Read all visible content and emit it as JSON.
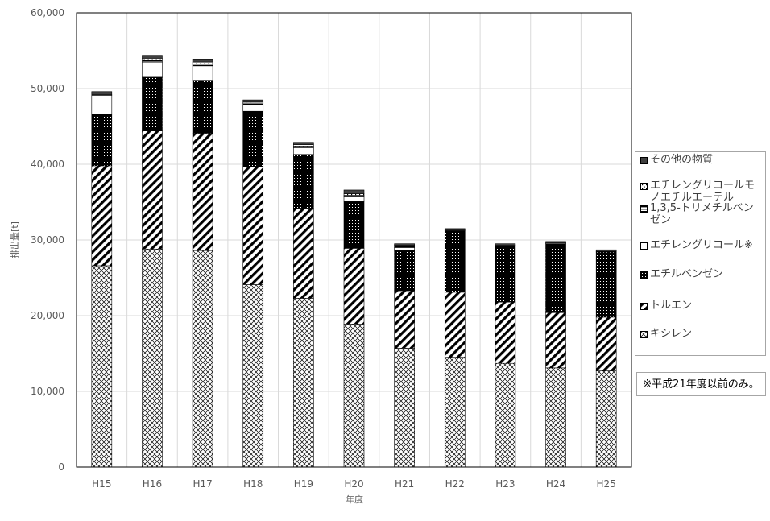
{
  "chart_data": {
    "type": "bar",
    "stacked": true,
    "categories": [
      "H15",
      "H16",
      "H17",
      "H18",
      "H19",
      "H20",
      "H21",
      "H22",
      "H23",
      "H24",
      "H25"
    ],
    "series": [
      {
        "name": "キシレン",
        "pattern": "crosshatch",
        "values": [
          26600,
          28800,
          28600,
          24100,
          22300,
          18900,
          15700,
          14500,
          13700,
          13100,
          12700
        ]
      },
      {
        "name": "トルエン",
        "pattern": "diagonal",
        "values": [
          13200,
          15600,
          15500,
          15600,
          11900,
          10000,
          7600,
          8600,
          8100,
          7300,
          7100
        ]
      },
      {
        "name": "エチルベンゼン",
        "pattern": "dotted-black",
        "values": [
          6800,
          7100,
          7000,
          7300,
          7100,
          6200,
          5300,
          8100,
          7400,
          9100,
          8600
        ]
      },
      {
        "name": "エチレングリコール※",
        "pattern": "white",
        "values": [
          2300,
          2000,
          1900,
          800,
          900,
          600,
          400,
          0,
          0,
          0,
          0
        ]
      },
      {
        "name": "1,3,5-トリメチルベンゼン",
        "pattern": "horizontal",
        "values": [
          200,
          300,
          200,
          200,
          200,
          200,
          200,
          100,
          100,
          100,
          100
        ]
      },
      {
        "name": "エチレングリコールモノエチルエーテル",
        "pattern": "dotted-white",
        "values": [
          100,
          200,
          300,
          200,
          200,
          200,
          100,
          0,
          0,
          0,
          0
        ]
      },
      {
        "name": "その他の物質",
        "pattern": "solid-gray",
        "values": [
          400,
          400,
          400,
          300,
          300,
          500,
          200,
          200,
          200,
          200,
          200
        ]
      }
    ],
    "xlabel": "年度",
    "ylabel": "排出量[t]",
    "ylim": [
      0,
      60000
    ],
    "yticks": [
      0,
      10000,
      20000,
      30000,
      40000,
      50000,
      60000
    ],
    "ytick_labels": [
      "0",
      "10,000",
      "20,000",
      "30,000",
      "40,000",
      "50,000",
      "60,000"
    ],
    "grid": true,
    "legend_position": "right",
    "legend_order": [
      "その他の物質",
      "エチレングリコールモノエチルエーテル",
      "1,3,5-トリメチルベンゼン",
      "エチレングリコール※",
      "エチルベンゼン",
      "トルエン",
      "キシレン"
    ]
  },
  "legend": {
    "items": [
      {
        "label": "その他の物質",
        "pattern": "solid-gray"
      },
      {
        "label": "エチレングリコールモノエチルエーテル",
        "pattern": "dotted-white"
      },
      {
        "label": "1,3,5-トリメチルベンゼン",
        "pattern": "horizontal"
      },
      {
        "label": "エチレングリコール※",
        "pattern": "white"
      },
      {
        "label": "エチルベンゼン",
        "pattern": "dotted-black"
      },
      {
        "label": "トルエン",
        "pattern": "diagonal"
      },
      {
        "label": "キシレン",
        "pattern": "crosshatch"
      }
    ]
  },
  "note": "※平成21年度以前のみ。",
  "colors": {
    "grid": "#d9d9d9",
    "axis": "#000000",
    "tick_text": "#595959",
    "bar_outline": "#000000"
  }
}
